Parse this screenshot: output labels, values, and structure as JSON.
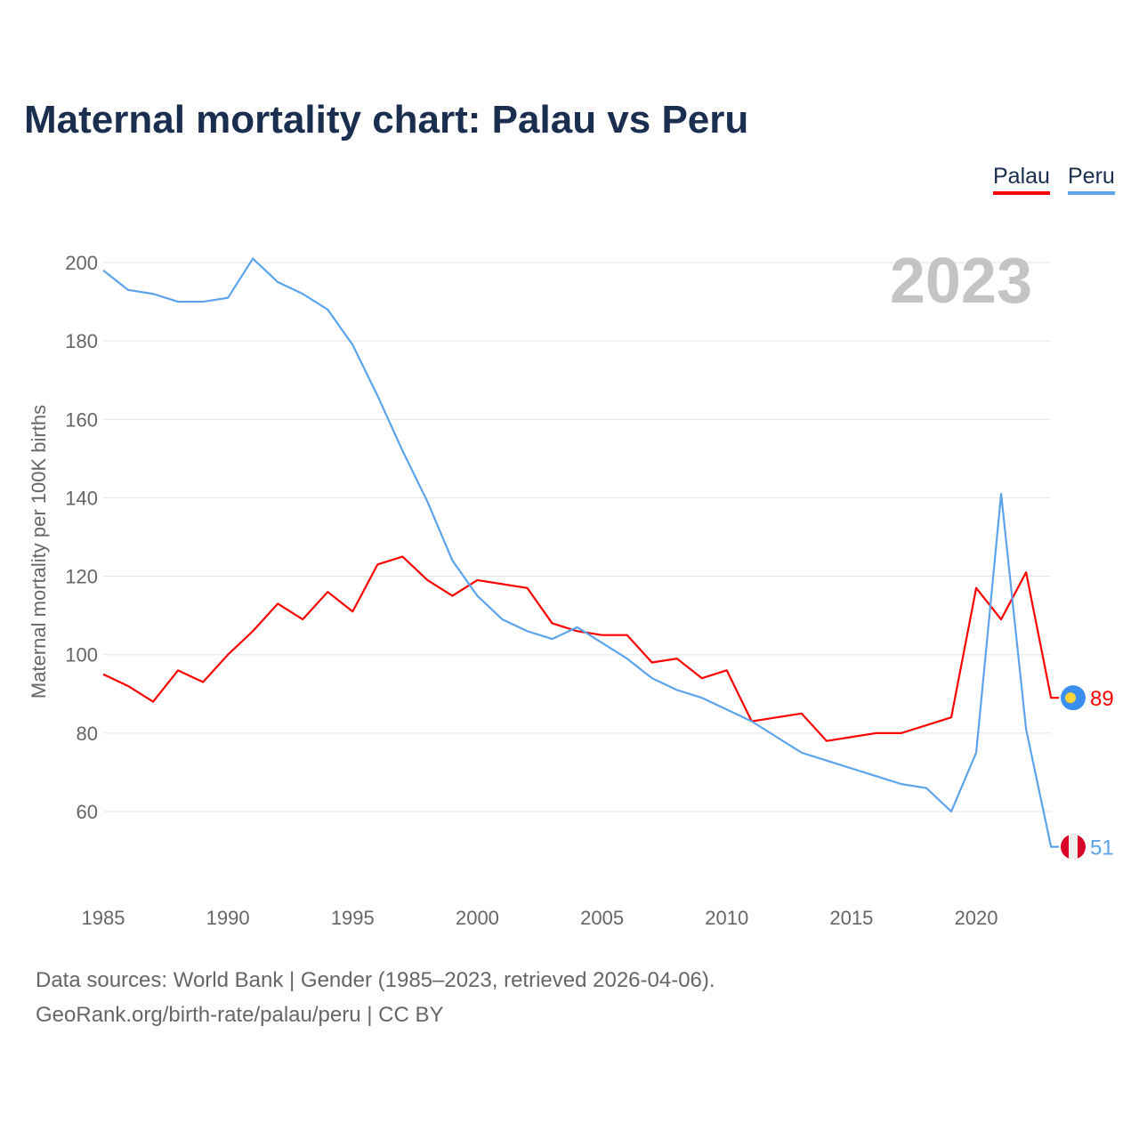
{
  "title": "Maternal mortality chart: Palau vs Peru",
  "year_watermark": "2023",
  "footer": {
    "line1": "Data sources: World Bank | Gender (1985–2023, retrieved 2026-04-06).",
    "line2": "GeoRank.org/birth-rate/palau/peru | CC BY"
  },
  "chart_data": {
    "type": "line",
    "title": "Maternal mortality chart: Palau vs Peru",
    "xlabel": "",
    "ylabel": "Maternal mortality per 100K births",
    "xlim": [
      1985,
      2023
    ],
    "ylim": [
      44,
      204
    ],
    "x_ticks": [
      1985,
      1990,
      1995,
      2000,
      2005,
      2010,
      2015,
      2020
    ],
    "y_ticks": [
      60,
      80,
      100,
      120,
      140,
      160,
      180,
      200
    ],
    "grid": true,
    "legend_position": "top-right",
    "x": [
      1985,
      1986,
      1987,
      1988,
      1989,
      1990,
      1991,
      1992,
      1993,
      1994,
      1995,
      1996,
      1997,
      1998,
      1999,
      2000,
      2001,
      2002,
      2003,
      2004,
      2005,
      2006,
      2007,
      2008,
      2009,
      2010,
      2011,
      2012,
      2013,
      2014,
      2015,
      2016,
      2017,
      2018,
      2019,
      2020,
      2021,
      2022,
      2023
    ],
    "series": [
      {
        "name": "Palau",
        "color": "#ff0000",
        "end_label": "89",
        "values": [
          95,
          92,
          88,
          96,
          93,
          100,
          106,
          113,
          109,
          116,
          111,
          123,
          125,
          119,
          115,
          119,
          118,
          117,
          108,
          106,
          105,
          105,
          98,
          99,
          94,
          96,
          83,
          84,
          85,
          78,
          79,
          80,
          80,
          82,
          84,
          117,
          109,
          121,
          89
        ]
      },
      {
        "name": "Peru",
        "color": "#5ba4ec",
        "end_label": "51",
        "values": [
          198,
          193,
          192,
          190,
          190,
          191,
          201,
          195,
          192,
          188,
          179,
          166,
          152,
          139,
          124,
          115,
          109,
          106,
          104,
          107,
          103,
          99,
          94,
          91,
          89,
          86,
          83,
          79,
          75,
          73,
          71,
          69,
          67,
          66,
          60,
          75,
          141,
          81,
          51
        ]
      }
    ]
  }
}
